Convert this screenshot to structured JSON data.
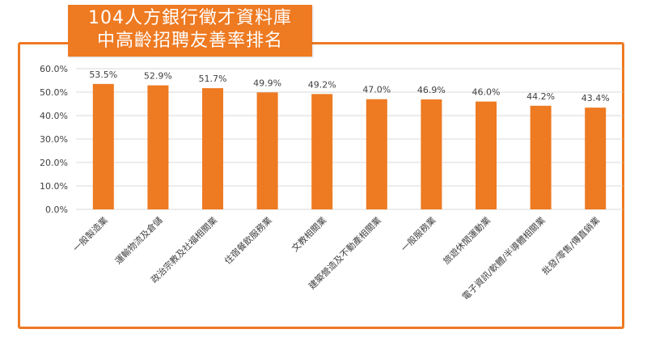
{
  "title": {
    "line1": "104人方銀行徵才資料庫",
    "line2": "中高齡招聘友善率排名"
  },
  "colors": {
    "bar": "#ee7a22",
    "frame": "#ee7a22",
    "title_bg": "#ee7a22",
    "grid": "#d9d9d9",
    "text": "#404040"
  },
  "chart_data": {
    "type": "bar",
    "categories": [
      "一般製造業",
      "運輸物流及倉儲",
      "政治宗教及社福相關業",
      "住宿餐飲服務業",
      "文教相關業",
      "建築營造及不動產相關業",
      "一般服務業",
      "旅遊休閒運動業",
      "電子資訊/軟體/半導體相關業",
      "批發/零售/傳直銷業"
    ],
    "values": [
      53.5,
      52.9,
      51.7,
      49.9,
      49.2,
      47.0,
      46.9,
      46.0,
      44.2,
      43.4
    ],
    "data_labels": [
      "53.5%",
      "52.9%",
      "51.7%",
      "49.9%",
      "49.2%",
      "47.0%",
      "46.9%",
      "46.0%",
      "44.2%",
      "43.4%"
    ],
    "yticks": [
      "0.0%",
      "10.0%",
      "20.0%",
      "30.0%",
      "40.0%",
      "50.0%",
      "60.0%"
    ],
    "ylim": [
      0,
      60
    ],
    "grid": true,
    "legend": "none"
  }
}
